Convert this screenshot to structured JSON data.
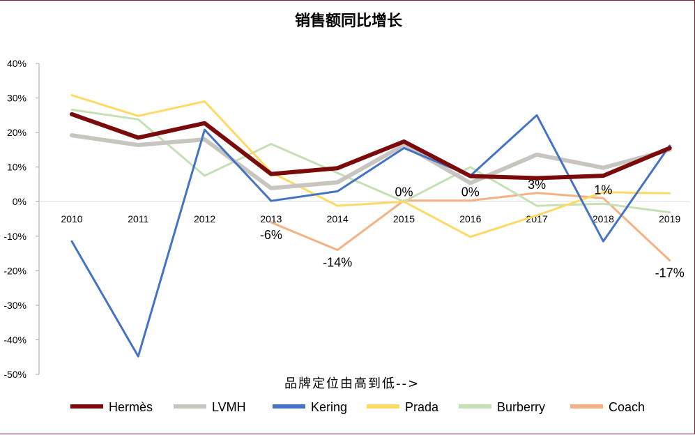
{
  "chart_data": {
    "type": "line",
    "title": "销售额同比增长",
    "xlabel": "品牌定位由高到低-->",
    "ylabel": "",
    "x": [
      "2010",
      "2011",
      "2012",
      "2013",
      "2014",
      "2015",
      "2016",
      "2017",
      "2018",
      "2019"
    ],
    "ylim": [
      -50,
      40
    ],
    "yticks": [
      "40%",
      "30%",
      "20%",
      "10%",
      "0%",
      "-10%",
      "-20%",
      "-30%",
      "-40%",
      "-50%"
    ],
    "ytick_values": [
      40,
      30,
      20,
      10,
      0,
      -10,
      -20,
      -30,
      -40,
      -50
    ],
    "grid": false,
    "legend": "bottom",
    "series": [
      {
        "name": "Hermès",
        "color": "#7b0a0a",
        "width": 6,
        "values": [
          25.3,
          18.5,
          22.7,
          8.0,
          9.7,
          17.4,
          7.4,
          6.8,
          7.5,
          15.5
        ]
      },
      {
        "name": "LVMH",
        "color": "#c8c5c0",
        "width": 6,
        "values": [
          19.2,
          16.4,
          18.0,
          3.9,
          5.6,
          16.4,
          5.4,
          13.6,
          9.8,
          15.0
        ]
      },
      {
        "name": "Kering",
        "color": "#4472c4",
        "width": 3,
        "values": [
          -11.5,
          -44.8,
          20.8,
          0.2,
          3.0,
          15.5,
          7.5,
          25.0,
          -11.5,
          16.2
        ]
      },
      {
        "name": "Prada",
        "color": "#ffd966",
        "width": 3,
        "values": [
          30.8,
          24.8,
          29.0,
          8.5,
          -1.2,
          0.0,
          -10.2,
          -4.0,
          2.7,
          2.4
        ]
      },
      {
        "name": "Burberry",
        "color": "#c5e0b4",
        "width": 3,
        "values": [
          26.6,
          23.8,
          7.5,
          16.7,
          8.3,
          0.0,
          10.0,
          -1.2,
          -0.6,
          -3.1
        ]
      },
      {
        "name": "Coach",
        "color": "#f4b183",
        "width": 3,
        "values": [
          null,
          null,
          null,
          -6.0,
          -14.0,
          0.3,
          0.3,
          2.5,
          1.0,
          -17.0
        ]
      }
    ],
    "annotations": [
      {
        "text": "-6%",
        "x": "2013",
        "y": -6,
        "anchor": "below"
      },
      {
        "text": "-14%",
        "x": "2014",
        "y": -14,
        "anchor": "below"
      },
      {
        "text": "0%",
        "x": "2015",
        "y": 0.3,
        "anchor": "above"
      },
      {
        "text": "0%",
        "x": "2016",
        "y": 0.3,
        "anchor": "above"
      },
      {
        "text": "3%",
        "x": "2017",
        "y": 2.5,
        "anchor": "above"
      },
      {
        "text": "1%",
        "x": "2018",
        "y": 1.0,
        "anchor": "above"
      },
      {
        "text": "-17%",
        "x": "2019",
        "y": -17,
        "anchor": "below"
      }
    ]
  }
}
